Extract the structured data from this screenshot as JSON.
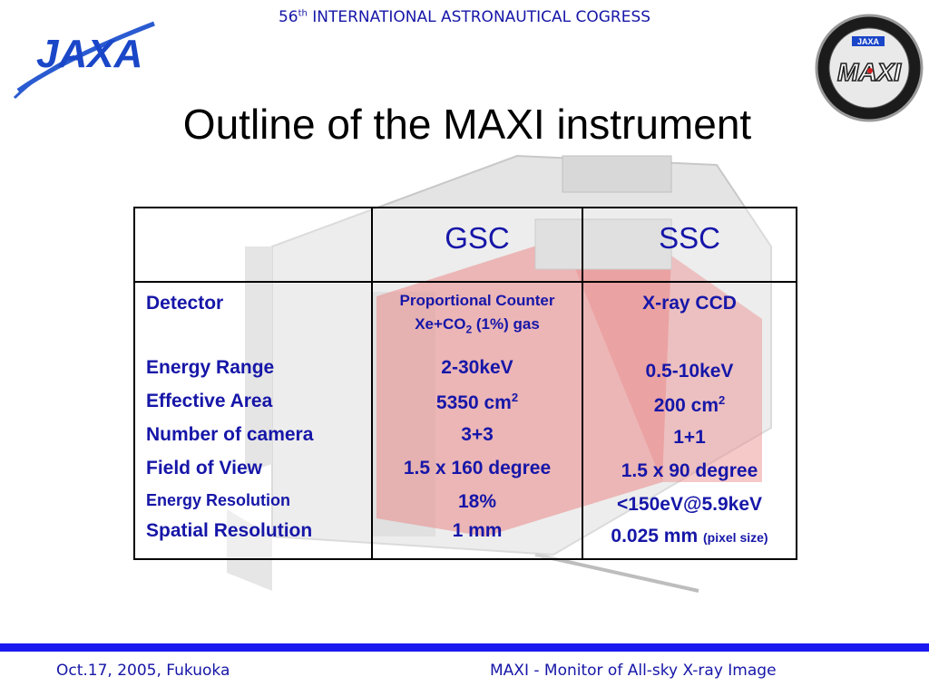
{
  "header": {
    "title_num": "56",
    "title_sup": "th",
    "title_rest": " INTERNATIONAL ASTRONAUTICAL COGRESS"
  },
  "logos": {
    "jaxa": "JAXA",
    "maxi": "MAXI",
    "maxi_badge": "JAXA"
  },
  "slide": {
    "title": "Outline of the MAXI instrument"
  },
  "table": {
    "columns": [
      "GSC",
      "SSC"
    ],
    "labels": {
      "detector": "Detector",
      "energy_range": "Energy Range",
      "effective_area": "Effective Area",
      "number_of_camera": "Number of camera",
      "field_of_view": "Field of View",
      "energy_resolution": "Energy Resolution",
      "spatial_resolution": "Spatial Resolution"
    },
    "gsc": {
      "detector_line1": "Proportional Counter",
      "detector_line2_pre": "Xe+CO",
      "detector_line2_sub": "2",
      "detector_line2_post": " (1%) gas",
      "energy_range": "2-30keV",
      "effective_area": "5350 cm",
      "effective_area_sup": "2",
      "number_of_camera": "3+3",
      "field_of_view": "1.5 x 160 degree",
      "energy_resolution": "18%",
      "spatial_resolution": "1 mm"
    },
    "ssc": {
      "detector": "X-ray CCD",
      "energy_range": "0.5-10keV",
      "effective_area": "200 cm",
      "effective_area_sup": "2",
      "number_of_camera": "1+1",
      "field_of_view": "1.5 x 90 degree",
      "energy_resolution": "<150eV@5.9keV",
      "spatial_resolution": "0.025 mm",
      "spatial_resolution_note": "(pixel size)"
    }
  },
  "footer": {
    "left": "Oct.17, 2005, Fukuoka",
    "right": "MAXI - Monitor of All-sky X-ray Image"
  },
  "colors": {
    "text_blue": "#1616a8",
    "footer_bar": "#1a1af0",
    "instrument_red": "#e04a4a"
  }
}
